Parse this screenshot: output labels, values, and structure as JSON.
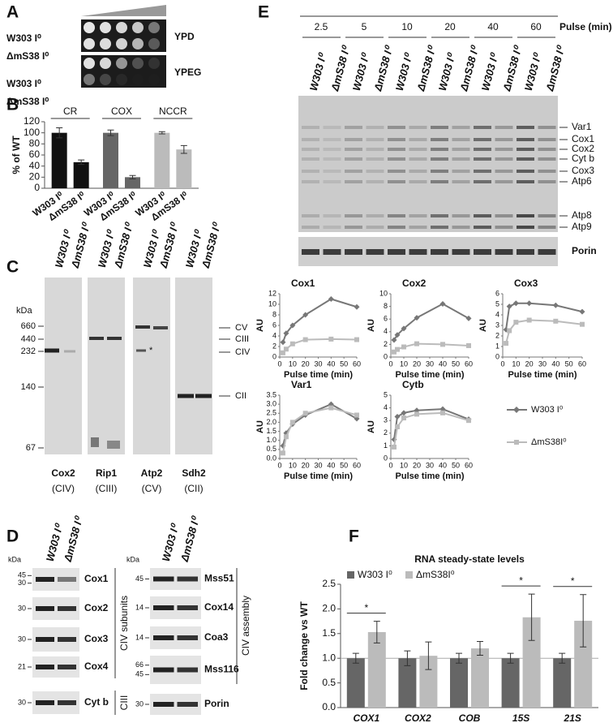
{
  "panel_labels": [
    "A",
    "B",
    "C",
    "D",
    "E",
    "F"
  ],
  "strains": [
    "W303 I⁰",
    "ΔmS38 I⁰"
  ],
  "panel_a": {
    "media": [
      "YPD",
      "YPEG"
    ]
  },
  "panel_c": {
    "kda_title": "kDa",
    "markers": [
      660,
      440,
      232,
      140,
      67
    ],
    "complexes": [
      "CV",
      "CIII",
      "CIV",
      "CII"
    ],
    "note": "*",
    "blots": [
      {
        "protein": "Cox2",
        "complex": "(CIV)"
      },
      {
        "protein": "Rip1",
        "complex": "(CIII)"
      },
      {
        "protein": "Atp2",
        "complex": "(CV)"
      },
      {
        "protein": "Sdh2",
        "complex": "(CII)"
      }
    ]
  },
  "panel_d": {
    "kda_title": "kDa",
    "left": [
      {
        "protein": "Cox1",
        "markers": [
          45,
          30
        ]
      },
      {
        "protein": "Cox2",
        "markers": [
          30
        ]
      },
      {
        "protein": "Cox3",
        "markers": [
          30
        ]
      },
      {
        "protein": "Cox4",
        "markers": [
          21
        ]
      }
    ],
    "left_group": "CIV subunits",
    "left_bottom": {
      "protein": "Cyt b",
      "markers": [
        30
      ],
      "group": "CIII"
    },
    "right": [
      {
        "protein": "Mss51",
        "markers": [
          45
        ]
      },
      {
        "protein": "Cox14",
        "markers": [
          14
        ]
      },
      {
        "protein": "Coa3",
        "markers": [
          14
        ]
      },
      {
        "protein": "Mss116",
        "markers": [
          66,
          45
        ]
      },
      {
        "protein": "Porin",
        "markers": [
          30
        ]
      }
    ],
    "right_group": "CIV assembly"
  },
  "panel_e": {
    "pulse_times": [
      2.5,
      5,
      10,
      20,
      40,
      60
    ],
    "pulse_label": "Pulse (min)",
    "bands": [
      "Var1",
      "Cox1",
      "Cox2",
      "Cyt b",
      "Cox3",
      "Atp6",
      "Atp8",
      "Atp9"
    ],
    "loading": "Porin"
  },
  "chart_data": [
    {
      "type": "bar",
      "ylabel": "% of WT",
      "categories": [
        "CR",
        "COX",
        "NCCR"
      ],
      "category_colors": [
        "#111111",
        "#666666",
        "#bbbbbb"
      ],
      "category_label_position": "top",
      "series_labels_under_bars": true,
      "series": [
        {
          "name": "W303 I⁰",
          "values": [
            100,
            100,
            100
          ],
          "errors": [
            9,
            5,
            2
          ]
        },
        {
          "name": "ΔmS38 I⁰",
          "values": [
            47,
            20,
            70
          ],
          "errors": [
            4,
            3,
            7
          ]
        }
      ],
      "ylim": [
        0,
        120
      ],
      "yticks": [
        0,
        20,
        40,
        60,
        80,
        100,
        120
      ]
    },
    {
      "type": "line",
      "title": "Cox1",
      "ylabel": "AU",
      "xlabel": "Pulse time (min)",
      "x": [
        2.5,
        5,
        10,
        20,
        40,
        60
      ],
      "xlim": [
        0,
        60
      ],
      "xticks": [
        0,
        10,
        20,
        30,
        40,
        50,
        60
      ],
      "ylim": [
        0,
        12
      ],
      "yticks": [
        0,
        2,
        4,
        6,
        8,
        10,
        12
      ],
      "series": [
        {
          "name": "W303 I⁰",
          "color": "#777777",
          "marker": "diamond",
          "values": [
            2.8,
            4.5,
            6,
            8,
            11,
            9.5
          ]
        },
        {
          "name": "ΔmS38I⁰",
          "color": "#bbbbbb",
          "marker": "square",
          "values": [
            0.8,
            1.5,
            2.5,
            3.3,
            3.4,
            3.3
          ]
        }
      ]
    },
    {
      "type": "line",
      "title": "Cox2",
      "ylabel": "AU",
      "xlabel": "Pulse time (min)",
      "x": [
        2.5,
        5,
        10,
        20,
        40,
        60
      ],
      "xlim": [
        0,
        60
      ],
      "xticks": [
        0,
        10,
        20,
        30,
        40,
        50,
        60
      ],
      "ylim": [
        0,
        10
      ],
      "yticks": [
        0,
        2,
        4,
        6,
        8,
        10
      ],
      "series": [
        {
          "color": "#777777",
          "marker": "diamond",
          "values": [
            2.7,
            3.5,
            4.5,
            6.2,
            8.4,
            6.1
          ]
        },
        {
          "color": "#bbbbbb",
          "marker": "square",
          "values": [
            0.8,
            1.2,
            1.6,
            2.1,
            2,
            1.8
          ]
        }
      ]
    },
    {
      "type": "line",
      "title": "Cox3",
      "ylabel": "AU",
      "xlabel": "Pulse time (min)",
      "x": [
        2.5,
        5,
        10,
        20,
        40,
        60
      ],
      "xlim": [
        0,
        60
      ],
      "xticks": [
        0,
        10,
        20,
        30,
        40,
        50,
        60
      ],
      "ylim": [
        0,
        6
      ],
      "yticks": [
        0,
        1,
        2,
        3,
        4,
        5,
        6
      ],
      "series": [
        {
          "color": "#777777",
          "marker": "diamond",
          "values": [
            2.6,
            4.8,
            5.1,
            5.1,
            4.9,
            4.3
          ]
        },
        {
          "color": "#bbbbbb",
          "marker": "square",
          "values": [
            1.3,
            2.5,
            3.3,
            3.5,
            3.4,
            3.1
          ]
        }
      ]
    },
    {
      "type": "line",
      "title": "Var1",
      "ylabel": "AU",
      "xlabel": "Pulse time (min)",
      "x": [
        2.5,
        5,
        10,
        20,
        40,
        60
      ],
      "xlim": [
        0,
        60
      ],
      "xticks": [
        0,
        10,
        20,
        30,
        40,
        50,
        60
      ],
      "ylim": [
        0,
        3.5
      ],
      "yticks": [
        {
          "value": 0,
          "label": "0.0"
        },
        0.5,
        {
          "value": 1,
          "label": "1.0"
        },
        1.5,
        {
          "value": 2,
          "label": "2.0"
        },
        2.5,
        {
          "value": 3,
          "label": "3.0"
        },
        3.5
      ],
      "series": [
        {
          "color": "#777777",
          "marker": "diamond",
          "values": [
            0.7,
            1.4,
            1.9,
            2.4,
            3,
            2.2
          ]
        },
        {
          "color": "#bbbbbb",
          "marker": "square",
          "values": [
            0.3,
            1.2,
            2,
            2.5,
            2.8,
            2.4
          ]
        }
      ]
    },
    {
      "type": "line",
      "title": "Cytb",
      "ylabel": "AU",
      "xlabel": "Pulse time (min)",
      "x": [
        2.5,
        5,
        10,
        20,
        40,
        60
      ],
      "xlim": [
        0,
        60
      ],
      "xticks": [
        0,
        10,
        20,
        30,
        40,
        50,
        60
      ],
      "ylim": [
        0,
        5
      ],
      "yticks": [
        0,
        1,
        2,
        3,
        4,
        5
      ],
      "series": [
        {
          "color": "#777777",
          "marker": "diamond",
          "values": [
            1.5,
            3.3,
            3.6,
            3.8,
            3.9,
            3.1
          ]
        },
        {
          "color": "#bbbbbb",
          "marker": "square",
          "values": [
            0.9,
            2.5,
            3.2,
            3.5,
            3.6,
            3
          ]
        }
      ]
    },
    {
      "type": "bar",
      "title": "RNA steady-state levels",
      "ylabel": "Fold change vs WT",
      "categories": [
        "COX1",
        "COX2",
        "COB",
        "15S",
        "21S"
      ],
      "category_label_position": "bottom",
      "legend": "top",
      "series": [
        {
          "name": "W303 I⁰",
          "color": "#666666",
          "values": [
            1,
            1,
            1,
            1,
            1
          ],
          "errors": [
            0.1,
            0.15,
            0.1,
            0.1,
            0.1
          ]
        },
        {
          "name": "ΔmS38I⁰",
          "color": "#bbbbbb",
          "values": [
            1.53,
            1.05,
            1.2,
            1.83,
            1.76
          ],
          "errors": [
            0.22,
            0.28,
            0.14,
            0.47,
            0.53
          ]
        }
      ],
      "significance": [
        "*",
        null,
        null,
        "*",
        "*"
      ],
      "reference_line": 1,
      "ylim": [
        0,
        2.5
      ],
      "yticks": [
        {
          "value": 0,
          "label": "0.0"
        },
        0.5,
        {
          "value": 1,
          "label": "1.0"
        },
        1.5,
        {
          "value": 2,
          "label": "2.0"
        },
        2.5
      ]
    }
  ]
}
